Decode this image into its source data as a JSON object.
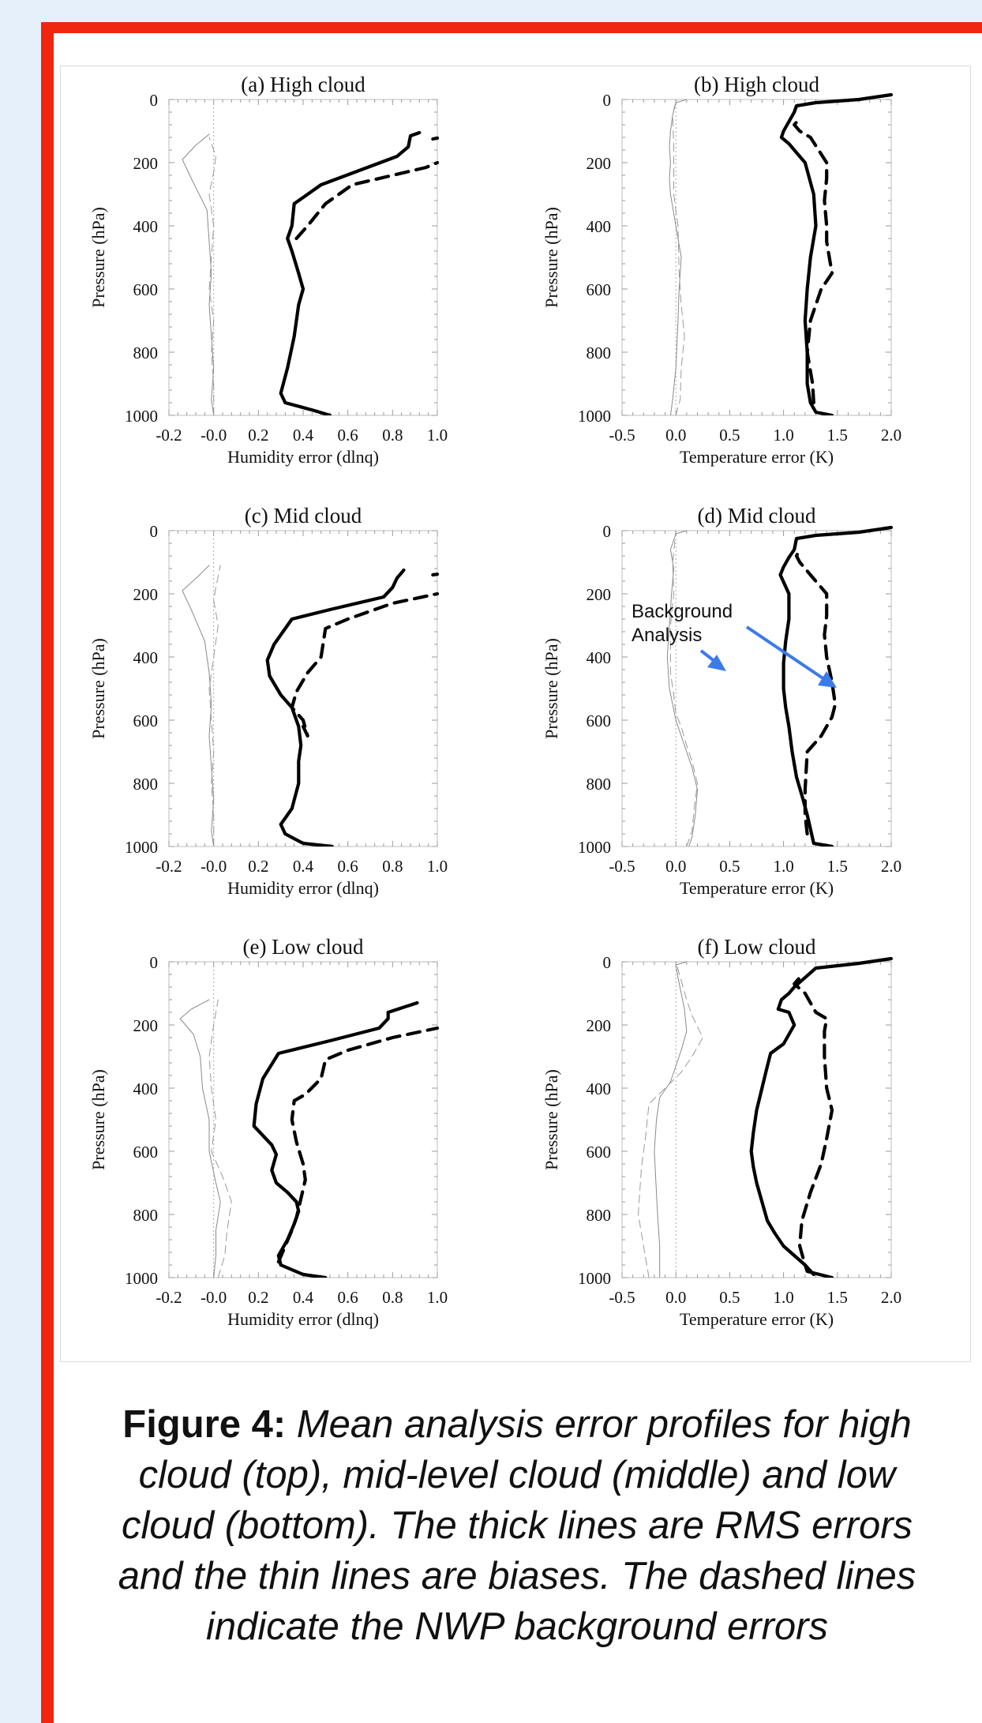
{
  "colors": {
    "frame": "#f0260f",
    "background": "#e5f0fb",
    "annotation_arrow": "#3b7be9"
  },
  "chart_data": [
    {
      "type": "line",
      "title": "(a) High cloud",
      "xlabel": "Humidity error (dlnq)",
      "ylabel": "Pressure (hPa)",
      "xlim": [
        -0.2,
        1.0
      ],
      "ylim": [
        1000,
        0
      ],
      "xticks": [
        "-0.2",
        "-0.0",
        "0.2",
        "0.4",
        "0.6",
        "0.8",
        "1.0"
      ],
      "yticks": [
        "0",
        "200",
        "400",
        "600",
        "800",
        "1000"
      ],
      "series": [
        {
          "style": "rms-analysis",
          "x": [
            0.52,
            0.45,
            0.32,
            0.3,
            0.33,
            0.36,
            0.38,
            0.4,
            0.38,
            0.35,
            0.33,
            0.35,
            0.36,
            0.48,
            0.82,
            0.87,
            0.88,
            0.92
          ],
          "y": [
            1000,
            985,
            960,
            930,
            850,
            750,
            650,
            600,
            550,
            480,
            440,
            400,
            330,
            270,
            180,
            150,
            115,
            105
          ]
        },
        {
          "style": "rms-background",
          "x": [
            0.37,
            0.42,
            0.5,
            0.62,
            0.8,
            0.95,
            1.0
          ],
          "y": [
            440,
            400,
            330,
            270,
            240,
            215,
            200
          ]
        },
        {
          "style": "rms-background",
          "x": [
            0.98,
            1.0
          ],
          "y": [
            125,
            122
          ]
        },
        {
          "style": "bias-analysis",
          "x": [
            -0.0,
            -0.01,
            -0.0,
            -0.01,
            -0.02,
            -0.01,
            -0.02,
            -0.03,
            -0.1,
            -0.14,
            -0.08,
            -0.02
          ],
          "y": [
            1000,
            950,
            850,
            750,
            650,
            550,
            450,
            350,
            250,
            190,
            145,
            110
          ]
        },
        {
          "style": "bias-background",
          "x": [
            0.0,
            0.0,
            -0.01,
            -0.0,
            -0.02,
            -0.01,
            -0.0,
            -0.02,
            -0.0,
            0.01,
            -0.02
          ],
          "y": [
            1000,
            900,
            800,
            700,
            600,
            500,
            400,
            300,
            230,
            180,
            120
          ]
        }
      ]
    },
    {
      "type": "line",
      "title": "(b) High cloud",
      "xlabel": "Temperature error (K)",
      "ylabel": "Pressure (hPa)",
      "xlim": [
        -0.5,
        2.0
      ],
      "ylim": [
        1000,
        0
      ],
      "xticks": [
        "-0.5",
        "0.0",
        "0.5",
        "1.0",
        "1.5",
        "2.0"
      ],
      "yticks": [
        "0",
        "200",
        "400",
        "600",
        "800",
        "1000"
      ],
      "series": [
        {
          "style": "rms-analysis",
          "x": [
            1.45,
            1.3,
            1.25,
            1.22,
            1.22,
            1.2,
            1.22,
            1.25,
            1.3,
            1.28,
            1.2,
            1.1,
            1.05,
            0.98,
            1.0,
            1.05,
            1.1,
            1.12,
            1.3,
            1.7,
            2.0
          ],
          "y": [
            1000,
            990,
            960,
            900,
            800,
            700,
            600,
            500,
            400,
            300,
            200,
            160,
            140,
            120,
            100,
            70,
            40,
            20,
            10,
            0,
            -15
          ],
          "clip": true
        },
        {
          "style": "rms-background",
          "x": [
            1.28,
            1.27,
            1.22,
            1.25,
            1.35,
            1.45,
            1.4,
            1.4,
            1.38,
            1.4,
            1.4,
            1.25,
            1.15,
            1.1,
            1.15
          ],
          "y": [
            960,
            900,
            800,
            700,
            600,
            550,
            450,
            400,
            320,
            250,
            200,
            120,
            100,
            80,
            60
          ]
        },
        {
          "style": "bias-analysis",
          "x": [
            -0.05,
            -0.03,
            0.0,
            0.02,
            0.03,
            0.05,
            0.0,
            -0.05,
            -0.06,
            -0.05,
            -0.06,
            -0.05,
            -0.03,
            0.0,
            0.1
          ],
          "y": [
            1000,
            950,
            850,
            700,
            600,
            500,
            400,
            300,
            250,
            200,
            150,
            100,
            50,
            10,
            0
          ]
        },
        {
          "style": "bias-background",
          "x": [
            0.0,
            0.04,
            0.05,
            0.08,
            0.05,
            0.03,
            0.02,
            -0.02,
            -0.02,
            -0.03,
            0.0
          ],
          "y": [
            1000,
            950,
            850,
            750,
            650,
            550,
            400,
            300,
            150,
            50,
            0
          ]
        }
      ]
    },
    {
      "type": "line",
      "title": "(c) Mid cloud",
      "xlabel": "Humidity error (dlnq)",
      "ylabel": "Pressure (hPa)",
      "xlim": [
        -0.2,
        1.0
      ],
      "ylim": [
        1000,
        0
      ],
      "xticks": [
        "-0.2",
        "-0.0",
        "0.2",
        "0.4",
        "0.6",
        "0.8",
        "1.0"
      ],
      "yticks": [
        "0",
        "200",
        "400",
        "600",
        "800",
        "1000"
      ],
      "series": [
        {
          "style": "rms-analysis",
          "x": [
            0.53,
            0.4,
            0.32,
            0.3,
            0.35,
            0.38,
            0.38,
            0.39,
            0.38,
            0.35,
            0.3,
            0.25,
            0.24,
            0.27,
            0.35,
            0.52,
            0.76,
            0.8,
            0.82,
            0.85
          ],
          "y": [
            1000,
            990,
            960,
            930,
            880,
            800,
            730,
            680,
            620,
            560,
            520,
            460,
            410,
            360,
            280,
            250,
            210,
            180,
            150,
            125
          ]
        },
        {
          "style": "rms-background",
          "x": [
            0.4,
            0.42,
            0.4,
            0.35,
            0.37,
            0.42,
            0.48,
            0.5,
            0.6,
            0.8,
            1.0
          ],
          "y": [
            620,
            650,
            600,
            560,
            510,
            450,
            400,
            310,
            280,
            230,
            200
          ]
        },
        {
          "style": "rms-background",
          "x": [
            0.98,
            1.0
          ],
          "y": [
            140,
            138
          ]
        },
        {
          "style": "bias-analysis",
          "x": [
            -0.0,
            -0.01,
            -0.0,
            -0.01,
            -0.02,
            -0.01,
            -0.02,
            -0.04,
            -0.1,
            -0.14,
            -0.07,
            -0.02
          ],
          "y": [
            1000,
            950,
            850,
            750,
            650,
            550,
            450,
            350,
            250,
            190,
            145,
            110
          ]
        },
        {
          "style": "bias-background",
          "x": [
            0.0,
            0.0,
            -0.01,
            0.0,
            -0.01,
            -0.02,
            0.0,
            0.02,
            0.0,
            0.01,
            0.03
          ],
          "y": [
            1000,
            900,
            800,
            700,
            600,
            500,
            400,
            300,
            220,
            180,
            110
          ]
        }
      ]
    },
    {
      "type": "line",
      "title": "(d) Mid cloud",
      "xlabel": "Temperature error (K)",
      "ylabel": "Pressure (hPa)",
      "xlim": [
        -0.5,
        2.0
      ],
      "ylim": [
        1000,
        0
      ],
      "xticks": [
        "-0.5",
        "0.0",
        "0.5",
        "1.0",
        "1.5",
        "2.0"
      ],
      "yticks": [
        "0",
        "200",
        "400",
        "600",
        "800",
        "1000"
      ],
      "annotations": [
        "Background",
        "Analysis"
      ],
      "series": [
        {
          "style": "rms-analysis",
          "x": [
            1.45,
            1.28,
            1.26,
            1.22,
            1.18,
            1.12,
            1.08,
            1.05,
            1.02,
            1.0,
            1.0,
            1.02,
            1.05,
            1.05,
            0.97,
            1.0,
            1.05,
            1.1,
            1.12,
            1.3,
            1.7,
            2.0
          ],
          "y": [
            1000,
            990,
            960,
            900,
            850,
            780,
            700,
            620,
            560,
            500,
            420,
            350,
            280,
            200,
            140,
            115,
            85,
            60,
            25,
            15,
            5,
            -10
          ],
          "clip": true
        },
        {
          "style": "rms-background",
          "x": [
            1.22,
            1.2,
            1.2,
            1.22,
            1.35,
            1.45,
            1.48,
            1.45,
            1.4,
            1.38,
            1.4,
            1.4,
            1.3,
            1.2,
            1.15,
            1.12,
            1.15
          ],
          "y": [
            960,
            900,
            820,
            700,
            650,
            590,
            550,
            480,
            400,
            330,
            270,
            200,
            160,
            120,
            100,
            80,
            60
          ]
        },
        {
          "style": "bias-analysis",
          "x": [
            0.12,
            0.15,
            0.18,
            0.2,
            0.15,
            0.1,
            0.05,
            0.0,
            -0.03,
            -0.06,
            -0.08,
            -0.06,
            -0.04,
            -0.02,
            -0.05,
            0.0,
            0.1
          ],
          "y": [
            1000,
            970,
            900,
            820,
            750,
            700,
            650,
            600,
            550,
            500,
            400,
            300,
            200,
            120,
            60,
            10,
            0
          ]
        },
        {
          "style": "bias-background",
          "x": [
            0.1,
            0.15,
            0.17,
            0.2,
            0.15,
            0.1,
            0.05,
            0.0,
            -0.02,
            -0.05,
            -0.05,
            -0.02,
            -0.03,
            0.0
          ],
          "y": [
            1000,
            950,
            880,
            800,
            730,
            680,
            620,
            580,
            520,
            450,
            300,
            200,
            100,
            0
          ]
        }
      ]
    },
    {
      "type": "line",
      "title": "(e) Low cloud",
      "xlabel": "Humidity error (dlnq)",
      "ylabel": "Pressure (hPa)",
      "xlim": [
        -0.2,
        1.0
      ],
      "ylim": [
        1000,
        0
      ],
      "xticks": [
        "-0.2",
        "-0.0",
        "0.2",
        "0.4",
        "0.6",
        "0.8",
        "1.0"
      ],
      "yticks": [
        "0",
        "200",
        "400",
        "600",
        "800",
        "1000"
      ],
      "series": [
        {
          "style": "rms-analysis",
          "x": [
            0.5,
            0.4,
            0.3,
            0.29,
            0.33,
            0.36,
            0.38,
            0.37,
            0.33,
            0.28,
            0.26,
            0.28,
            0.26,
            0.18,
            0.19,
            0.22,
            0.29,
            0.52,
            0.74,
            0.78,
            0.78,
            0.91
          ],
          "y": [
            1000,
            990,
            960,
            930,
            880,
            830,
            790,
            760,
            730,
            700,
            660,
            610,
            580,
            520,
            450,
            370,
            290,
            250,
            210,
            180,
            160,
            130
          ]
        },
        {
          "style": "rms-background",
          "x": [
            0.29,
            0.32,
            0.35,
            0.37,
            0.39,
            0.41,
            0.4,
            0.37,
            0.35,
            0.36,
            0.41,
            0.48,
            0.5,
            0.6,
            0.8,
            1.0
          ],
          "y": [
            950,
            900,
            850,
            810,
            750,
            690,
            640,
            570,
            500,
            440,
            420,
            370,
            310,
            280,
            240,
            210
          ]
        },
        {
          "style": "bias-analysis",
          "x": [
            0.0,
            0.01,
            0.01,
            0.03,
            0.01,
            -0.02,
            -0.02,
            -0.05,
            -0.06,
            -0.09,
            -0.15,
            -0.1,
            -0.02
          ],
          "y": [
            1000,
            930,
            850,
            760,
            700,
            600,
            500,
            400,
            300,
            230,
            180,
            150,
            120
          ]
        },
        {
          "style": "bias-background",
          "x": [
            0.02,
            0.05,
            0.06,
            0.08,
            0.04,
            -0.01,
            0.01,
            -0.01,
            -0.02,
            0.0,
            0.02
          ],
          "y": [
            1000,
            930,
            850,
            760,
            680,
            600,
            500,
            400,
            300,
            200,
            120
          ]
        }
      ]
    },
    {
      "type": "line",
      "title": "(f) Low cloud",
      "xlabel": "Temperature error (K)",
      "ylabel": "Pressure (hPa)",
      "xlim": [
        -0.5,
        2.0
      ],
      "ylim": [
        1000,
        0
      ],
      "xticks": [
        "-0.5",
        "0.0",
        "0.5",
        "1.0",
        "1.5",
        "2.0"
      ],
      "yticks": [
        "0",
        "200",
        "400",
        "600",
        "800",
        "1000"
      ],
      "series": [
        {
          "style": "rms-analysis",
          "x": [
            1.45,
            1.22,
            1.2,
            1.1,
            1.0,
            0.92,
            0.85,
            0.8,
            0.75,
            0.72,
            0.7,
            0.72,
            0.75,
            0.8,
            0.85,
            0.88,
            1.0,
            1.1,
            1.05,
            0.95,
            0.98,
            1.05,
            1.1,
            1.3,
            1.7,
            2.0
          ],
          "y": [
            1000,
            980,
            960,
            930,
            900,
            860,
            820,
            760,
            700,
            650,
            600,
            540,
            470,
            400,
            330,
            290,
            260,
            200,
            160,
            150,
            120,
            100,
            80,
            20,
            5,
            -10
          ],
          "clip": true
        },
        {
          "style": "rms-background",
          "x": [
            1.28,
            1.2,
            1.15,
            1.17,
            1.25,
            1.35,
            1.4,
            1.45,
            1.4,
            1.38,
            1.38,
            1.4,
            1.3,
            1.2,
            1.1,
            1.15
          ],
          "y": [
            990,
            960,
            900,
            820,
            730,
            640,
            560,
            470,
            400,
            300,
            220,
            180,
            160,
            100,
            70,
            50
          ]
        },
        {
          "style": "bias-analysis",
          "x": [
            -0.15,
            -0.15,
            -0.17,
            -0.2,
            -0.18,
            -0.15,
            -0.05,
            0.0,
            0.05,
            0.1,
            0.08,
            0.05,
            0.02,
            0.0,
            0.1
          ],
          "y": [
            1000,
            900,
            800,
            600,
            500,
            430,
            380,
            330,
            280,
            220,
            150,
            100,
            50,
            10,
            0
          ]
        },
        {
          "style": "bias-background",
          "x": [
            -0.25,
            -0.3,
            -0.35,
            -0.32,
            -0.28,
            -0.25,
            -0.1,
            0.05,
            0.15,
            0.2,
            0.25,
            0.15,
            0.1,
            0.05,
            0.0
          ],
          "y": [
            1000,
            900,
            800,
            650,
            550,
            450,
            400,
            350,
            300,
            270,
            240,
            170,
            120,
            60,
            0
          ]
        }
      ]
    }
  ],
  "caption": {
    "label": "Figure 4:",
    "text": " Mean analysis error profiles for high cloud (top), mid-level cloud (middle) and low cloud (bottom). The thick lines are RMS errors and the thin lines are biases. The dashed lines indicate the NWP background errors"
  }
}
